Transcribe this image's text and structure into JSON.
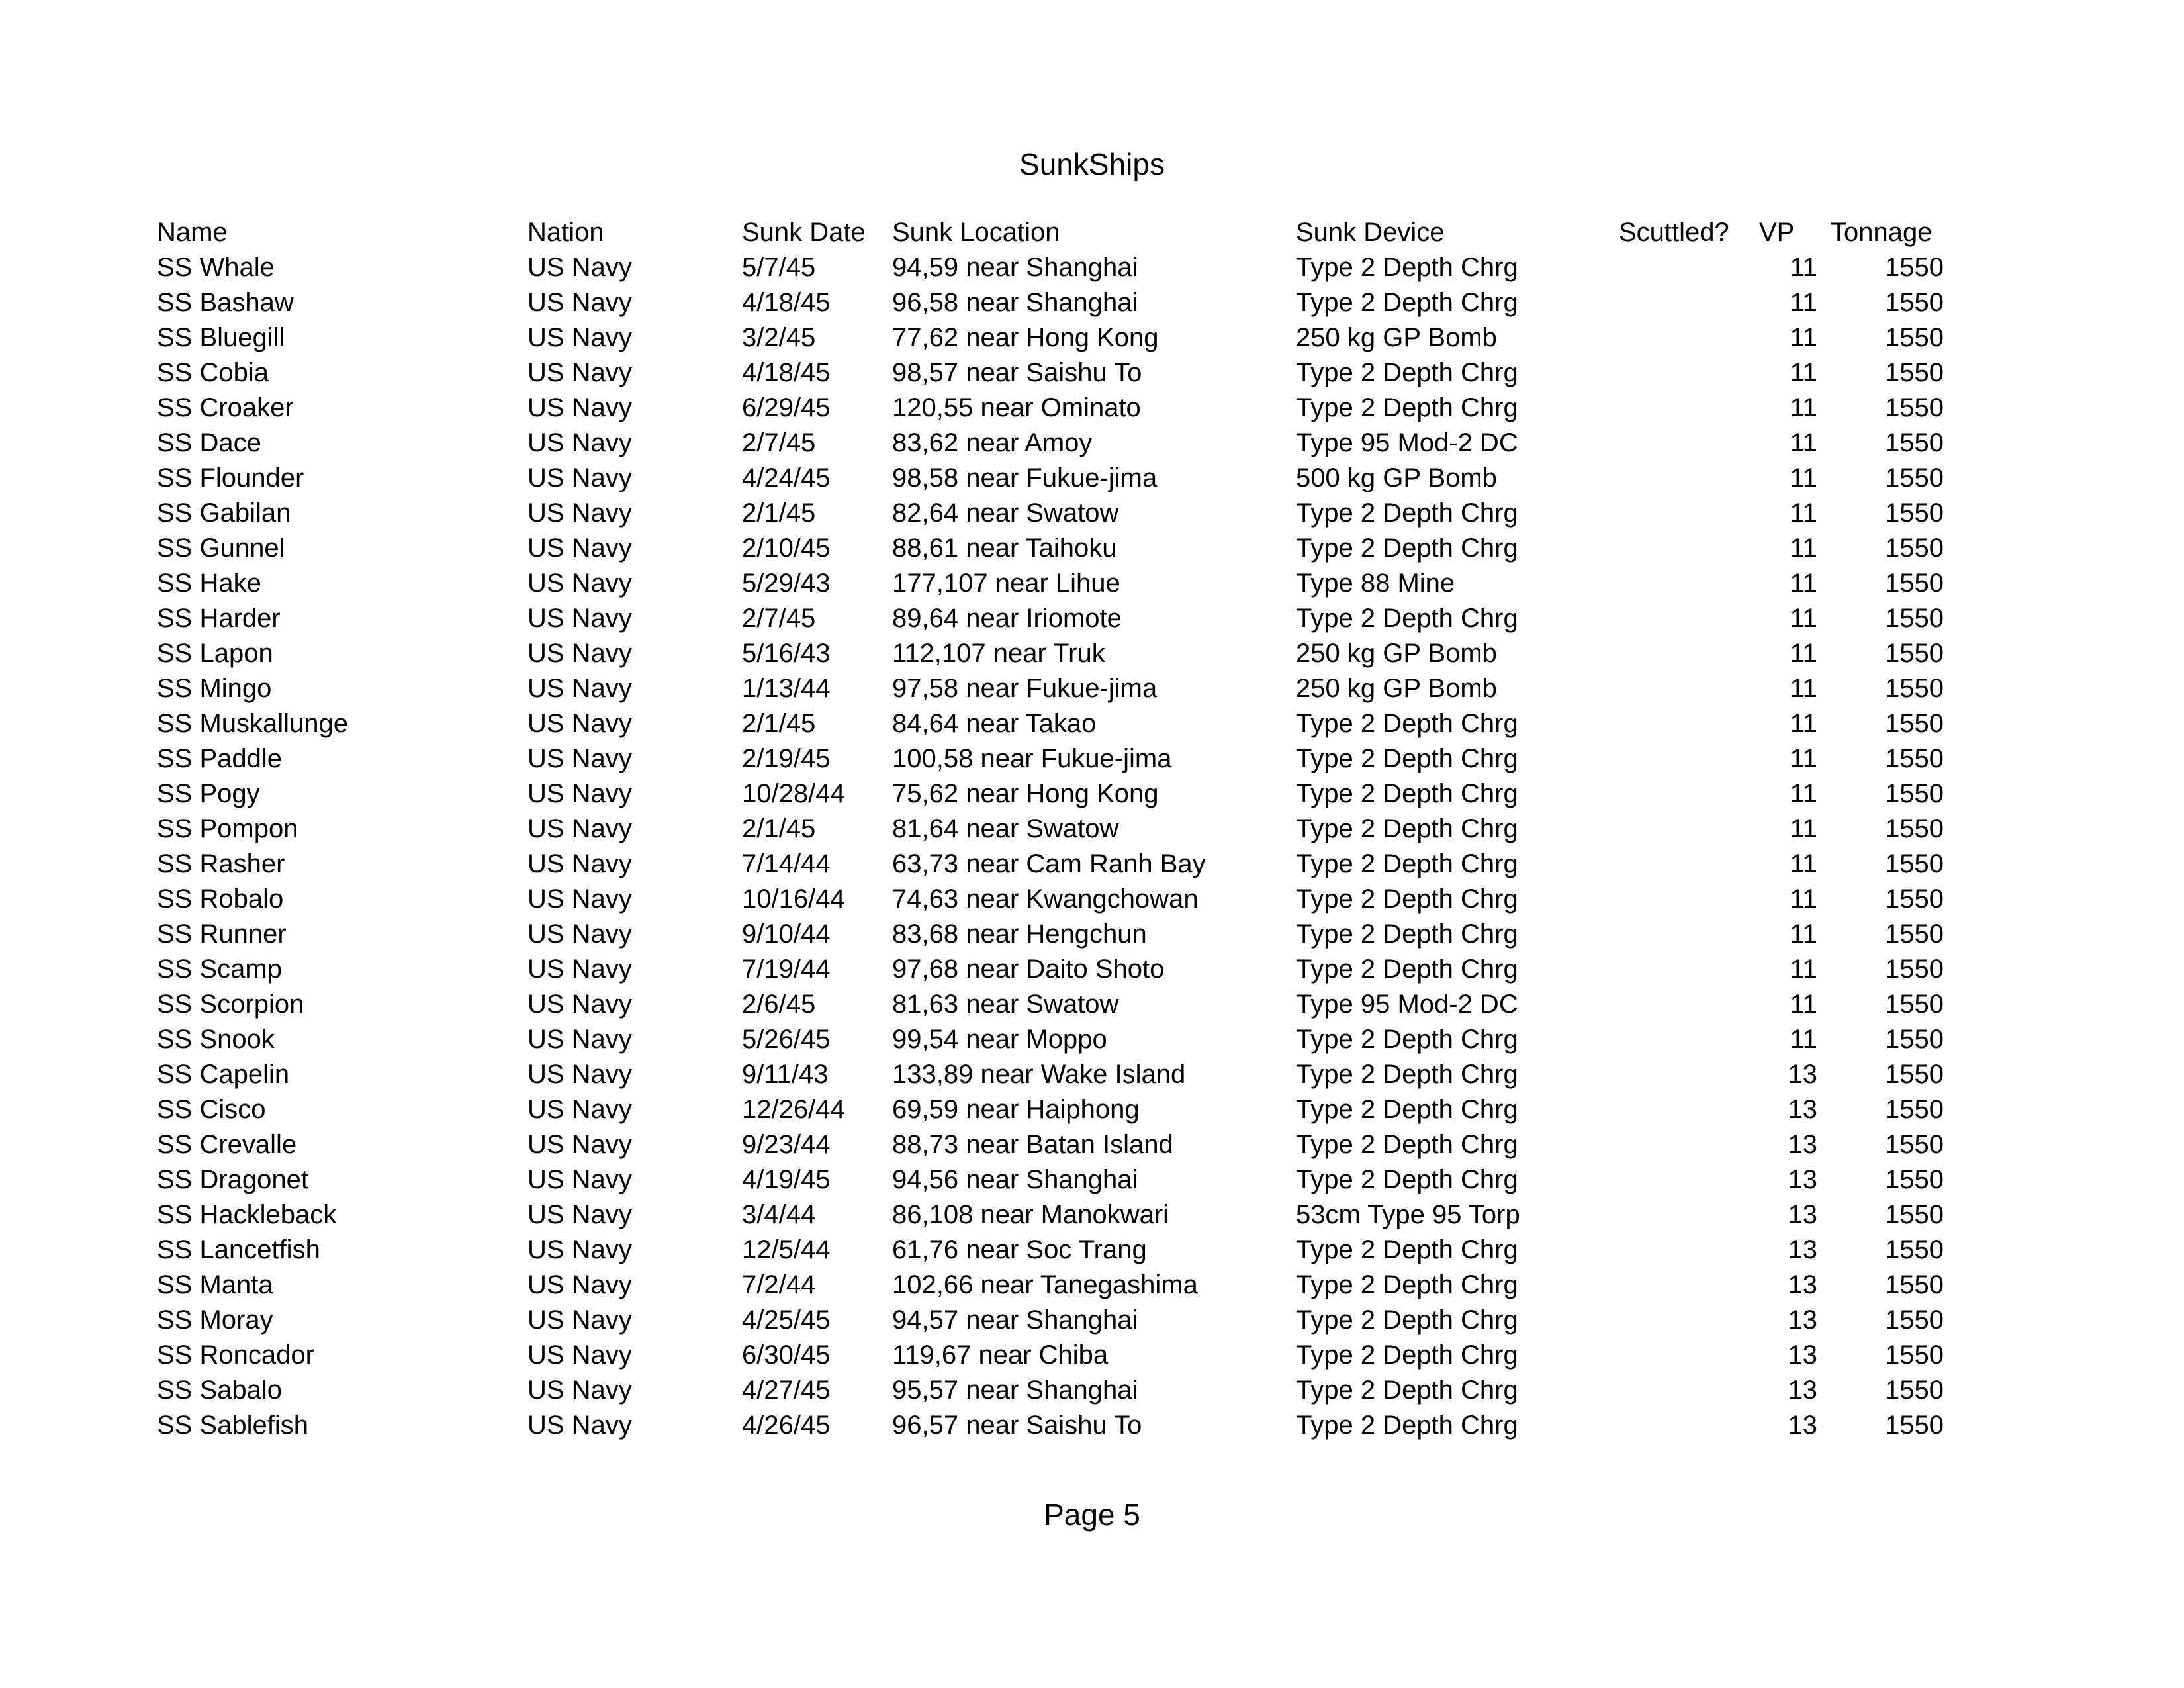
{
  "page": {
    "title": "SunkShips",
    "footer": "Page 5"
  },
  "table": {
    "columns": [
      {
        "key": "name",
        "label": "Name"
      },
      {
        "key": "nation",
        "label": "Nation"
      },
      {
        "key": "sunk_date",
        "label": "Sunk Date"
      },
      {
        "key": "sunk_location",
        "label": "Sunk Location"
      },
      {
        "key": "sunk_device",
        "label": "Sunk Device"
      },
      {
        "key": "scuttled",
        "label": "Scuttled?"
      },
      {
        "key": "vp",
        "label": "VP"
      },
      {
        "key": "tonnage",
        "label": "Tonnage"
      }
    ],
    "rows": [
      {
        "name": "SS Whale",
        "nation": "US Navy",
        "sunk_date": "5/7/45",
        "sunk_location": "94,59 near Shanghai",
        "sunk_device": "Type 2 Depth Chrg",
        "scuttled": "",
        "vp": "11",
        "tonnage": "1550"
      },
      {
        "name": "SS Bashaw",
        "nation": "US Navy",
        "sunk_date": "4/18/45",
        "sunk_location": "96,58 near Shanghai",
        "sunk_device": "Type 2 Depth Chrg",
        "scuttled": "",
        "vp": "11",
        "tonnage": "1550"
      },
      {
        "name": "SS Bluegill",
        "nation": "US Navy",
        "sunk_date": "3/2/45",
        "sunk_location": "77,62 near Hong Kong",
        "sunk_device": "250 kg GP Bomb",
        "scuttled": "",
        "vp": "11",
        "tonnage": "1550"
      },
      {
        "name": "SS Cobia",
        "nation": "US Navy",
        "sunk_date": "4/18/45",
        "sunk_location": "98,57 near Saishu To",
        "sunk_device": "Type 2 Depth Chrg",
        "scuttled": "",
        "vp": "11",
        "tonnage": "1550"
      },
      {
        "name": "SS Croaker",
        "nation": "US Navy",
        "sunk_date": "6/29/45",
        "sunk_location": "120,55 near Ominato",
        "sunk_device": "Type 2 Depth Chrg",
        "scuttled": "",
        "vp": "11",
        "tonnage": "1550"
      },
      {
        "name": "SS Dace",
        "nation": "US Navy",
        "sunk_date": "2/7/45",
        "sunk_location": "83,62 near Amoy",
        "sunk_device": "Type 95 Mod-2 DC",
        "scuttled": "",
        "vp": "11",
        "tonnage": "1550"
      },
      {
        "name": "SS Flounder",
        "nation": "US Navy",
        "sunk_date": "4/24/45",
        "sunk_location": "98,58 near Fukue-jima",
        "sunk_device": "500 kg GP Bomb",
        "scuttled": "",
        "vp": "11",
        "tonnage": "1550"
      },
      {
        "name": "SS Gabilan",
        "nation": "US Navy",
        "sunk_date": "2/1/45",
        "sunk_location": "82,64 near Swatow",
        "sunk_device": "Type 2 Depth Chrg",
        "scuttled": "",
        "vp": "11",
        "tonnage": "1550"
      },
      {
        "name": "SS Gunnel",
        "nation": "US Navy",
        "sunk_date": "2/10/45",
        "sunk_location": "88,61 near Taihoku",
        "sunk_device": "Type 2 Depth Chrg",
        "scuttled": "",
        "vp": "11",
        "tonnage": "1550"
      },
      {
        "name": "SS Hake",
        "nation": "US Navy",
        "sunk_date": "5/29/43",
        "sunk_location": "177,107 near Lihue",
        "sunk_device": "Type 88 Mine",
        "scuttled": "",
        "vp": "11",
        "tonnage": "1550"
      },
      {
        "name": "SS Harder",
        "nation": "US Navy",
        "sunk_date": "2/7/45",
        "sunk_location": "89,64 near Iriomote",
        "sunk_device": "Type 2 Depth Chrg",
        "scuttled": "",
        "vp": "11",
        "tonnage": "1550"
      },
      {
        "name": "SS Lapon",
        "nation": "US Navy",
        "sunk_date": "5/16/43",
        "sunk_location": "112,107 near Truk",
        "sunk_device": "250 kg GP Bomb",
        "scuttled": "",
        "vp": "11",
        "tonnage": "1550"
      },
      {
        "name": "SS Mingo",
        "nation": "US Navy",
        "sunk_date": "1/13/44",
        "sunk_location": "97,58 near Fukue-jima",
        "sunk_device": "250 kg GP Bomb",
        "scuttled": "",
        "vp": "11",
        "tonnage": "1550"
      },
      {
        "name": "SS Muskallunge",
        "nation": "US Navy",
        "sunk_date": "2/1/45",
        "sunk_location": "84,64 near Takao",
        "sunk_device": "Type 2 Depth Chrg",
        "scuttled": "",
        "vp": "11",
        "tonnage": "1550"
      },
      {
        "name": "SS Paddle",
        "nation": "US Navy",
        "sunk_date": "2/19/45",
        "sunk_location": "100,58 near Fukue-jima",
        "sunk_device": "Type 2 Depth Chrg",
        "scuttled": "",
        "vp": "11",
        "tonnage": "1550"
      },
      {
        "name": "SS Pogy",
        "nation": "US Navy",
        "sunk_date": "10/28/44",
        "sunk_location": "75,62 near Hong Kong",
        "sunk_device": "Type 2 Depth Chrg",
        "scuttled": "",
        "vp": "11",
        "tonnage": "1550"
      },
      {
        "name": "SS Pompon",
        "nation": "US Navy",
        "sunk_date": "2/1/45",
        "sunk_location": "81,64 near Swatow",
        "sunk_device": "Type 2 Depth Chrg",
        "scuttled": "",
        "vp": "11",
        "tonnage": "1550"
      },
      {
        "name": "SS Rasher",
        "nation": "US Navy",
        "sunk_date": "7/14/44",
        "sunk_location": "63,73 near Cam Ranh Bay",
        "sunk_device": "Type 2 Depth Chrg",
        "scuttled": "",
        "vp": "11",
        "tonnage": "1550"
      },
      {
        "name": "SS Robalo",
        "nation": "US Navy",
        "sunk_date": "10/16/44",
        "sunk_location": "74,63 near Kwangchowan",
        "sunk_device": "Type 2 Depth Chrg",
        "scuttled": "",
        "vp": "11",
        "tonnage": "1550"
      },
      {
        "name": "SS Runner",
        "nation": "US Navy",
        "sunk_date": "9/10/44",
        "sunk_location": "83,68 near Hengchun",
        "sunk_device": "Type 2 Depth Chrg",
        "scuttled": "",
        "vp": "11",
        "tonnage": "1550"
      },
      {
        "name": "SS Scamp",
        "nation": "US Navy",
        "sunk_date": "7/19/44",
        "sunk_location": "97,68 near Daito Shoto",
        "sunk_device": "Type 2 Depth Chrg",
        "scuttled": "",
        "vp": "11",
        "tonnage": "1550"
      },
      {
        "name": "SS Scorpion",
        "nation": "US Navy",
        "sunk_date": "2/6/45",
        "sunk_location": "81,63 near Swatow",
        "sunk_device": "Type 95 Mod-2 DC",
        "scuttled": "",
        "vp": "11",
        "tonnage": "1550"
      },
      {
        "name": "SS Snook",
        "nation": "US Navy",
        "sunk_date": "5/26/45",
        "sunk_location": "99,54 near Moppo",
        "sunk_device": "Type 2 Depth Chrg",
        "scuttled": "",
        "vp": "11",
        "tonnage": "1550"
      },
      {
        "name": "SS Capelin",
        "nation": "US Navy",
        "sunk_date": "9/11/43",
        "sunk_location": "133,89 near Wake Island",
        "sunk_device": "Type 2 Depth Chrg",
        "scuttled": "",
        "vp": "13",
        "tonnage": "1550"
      },
      {
        "name": "SS Cisco",
        "nation": "US Navy",
        "sunk_date": "12/26/44",
        "sunk_location": "69,59 near Haiphong",
        "sunk_device": "Type 2 Depth Chrg",
        "scuttled": "",
        "vp": "13",
        "tonnage": "1550"
      },
      {
        "name": "SS Crevalle",
        "nation": "US Navy",
        "sunk_date": "9/23/44",
        "sunk_location": "88,73 near Batan Island",
        "sunk_device": "Type 2 Depth Chrg",
        "scuttled": "",
        "vp": "13",
        "tonnage": "1550"
      },
      {
        "name": "SS Dragonet",
        "nation": "US Navy",
        "sunk_date": "4/19/45",
        "sunk_location": "94,56 near Shanghai",
        "sunk_device": "Type 2 Depth Chrg",
        "scuttled": "",
        "vp": "13",
        "tonnage": "1550"
      },
      {
        "name": "SS Hackleback",
        "nation": "US Navy",
        "sunk_date": "3/4/44",
        "sunk_location": "86,108 near Manokwari",
        "sunk_device": "53cm Type 95 Torp",
        "scuttled": "",
        "vp": "13",
        "tonnage": "1550"
      },
      {
        "name": "SS Lancetfish",
        "nation": "US Navy",
        "sunk_date": "12/5/44",
        "sunk_location": "61,76 near Soc Trang",
        "sunk_device": "Type 2 Depth Chrg",
        "scuttled": "",
        "vp": "13",
        "tonnage": "1550"
      },
      {
        "name": "SS Manta",
        "nation": "US Navy",
        "sunk_date": "7/2/44",
        "sunk_location": "102,66 near Tanegashima",
        "sunk_device": "Type 2 Depth Chrg",
        "scuttled": "",
        "vp": "13",
        "tonnage": "1550"
      },
      {
        "name": "SS Moray",
        "nation": "US Navy",
        "sunk_date": "4/25/45",
        "sunk_location": "94,57 near Shanghai",
        "sunk_device": "Type 2 Depth Chrg",
        "scuttled": "",
        "vp": "13",
        "tonnage": "1550"
      },
      {
        "name": "SS Roncador",
        "nation": "US Navy",
        "sunk_date": "6/30/45",
        "sunk_location": "119,67 near Chiba",
        "sunk_device": "Type 2 Depth Chrg",
        "scuttled": "",
        "vp": "13",
        "tonnage": "1550"
      },
      {
        "name": "SS Sabalo",
        "nation": "US Navy",
        "sunk_date": "4/27/45",
        "sunk_location": "95,57 near Shanghai",
        "sunk_device": "Type 2 Depth Chrg",
        "scuttled": "",
        "vp": "13",
        "tonnage": "1550"
      },
      {
        "name": "SS Sablefish",
        "nation": "US Navy",
        "sunk_date": "4/26/45",
        "sunk_location": "96,57 near Saishu To",
        "sunk_device": "Type 2 Depth Chrg",
        "scuttled": "",
        "vp": "13",
        "tonnage": "1550"
      }
    ]
  }
}
